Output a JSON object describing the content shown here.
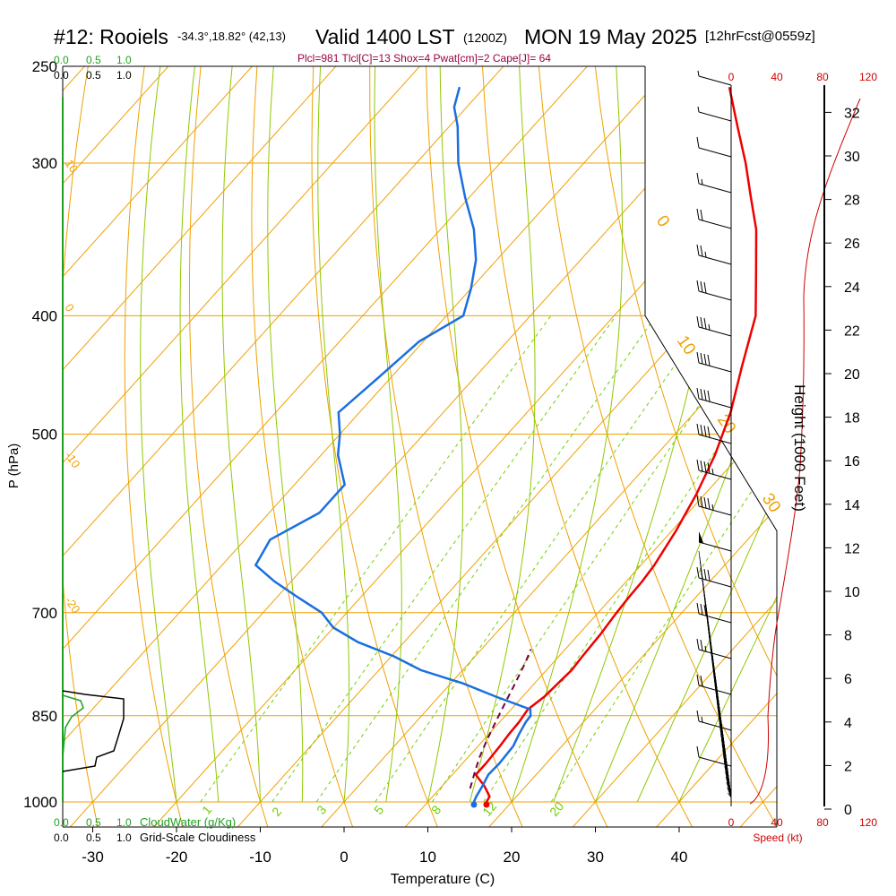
{
  "header": {
    "station": "#12: Rooiels",
    "coords": "-34.3°,18.82° (42,13)",
    "valid": "Valid 1400 LST",
    "utc": "(1200Z)",
    "date": "MON 19 May 2025",
    "fcst": "[12hrFcst@0559z]",
    "indices": "Plcl=981 Tlcl[C]=13 Shox=4 Pwat[cm]=2 Cape[J]= 64"
  },
  "colors": {
    "temperature": "#ee0000",
    "dewpoint": "#1a6fe0",
    "parcel": "#7a0040",
    "isotherm": "#f0a000",
    "moist_adiabat": "#90c800",
    "mixing_ratio": "#70d000",
    "cloudwater": "#20a020",
    "speed": "#cc0000",
    "indices_text": "#990044"
  },
  "chart_data": {
    "type": "skew-t",
    "title": "#12: Rooiels Valid 1400 LST (1200Z) MON 19 May 2025",
    "xlabel": "Temperature (C)",
    "ylabel": "P (hPa)",
    "y2label": "Height (1000 Feet)",
    "x_ticks": [
      -30,
      -20,
      -10,
      0,
      10,
      20,
      30,
      40
    ],
    "pressure_ticks": [
      250,
      300,
      400,
      500,
      700,
      850,
      1000
    ],
    "height_ticks": [
      0,
      2,
      4,
      6,
      8,
      10,
      12,
      14,
      16,
      18,
      20,
      22,
      24,
      26,
      28,
      30,
      32
    ],
    "isotherm_labels": [
      {
        "text": "10",
        "t": 10
      },
      {
        "text": "0",
        "t": 0
      },
      {
        "text": "-10",
        "t": -10
      },
      {
        "text": "-20",
        "t": -20
      },
      {
        "text": "0",
        "t": 0
      },
      {
        "text": "10",
        "t": 10
      },
      {
        "text": "20",
        "t": 20
      },
      {
        "text": "30",
        "t": 30
      }
    ],
    "mixing_ratio_labels": [
      "1",
      "2",
      "3",
      "5",
      "8",
      "12",
      "20"
    ],
    "series": [
      {
        "name": "Temperature",
        "points": [
          [
            1000,
            17.0
          ],
          [
            990,
            16.8
          ],
          [
            970,
            15.0
          ],
          [
            950,
            12.8
          ],
          [
            930,
            12.8
          ],
          [
            900,
            12.6
          ],
          [
            880,
            12.4
          ],
          [
            860,
            12.3
          ],
          [
            840,
            12.0
          ],
          [
            820,
            12.6
          ],
          [
            800,
            12.8
          ],
          [
            780,
            13.0
          ],
          [
            760,
            12.8
          ],
          [
            730,
            12.6
          ],
          [
            700,
            12.2
          ],
          [
            680,
            12.0
          ],
          [
            660,
            11.9
          ],
          [
            640,
            11.6
          ],
          [
            600,
            10.5
          ],
          [
            560,
            9.0
          ],
          [
            520,
            7.0
          ],
          [
            480,
            4.3
          ],
          [
            440,
            0.7
          ],
          [
            400,
            -3.1
          ],
          [
            370,
            -7.5
          ],
          [
            340,
            -12.3
          ],
          [
            320,
            -16.4
          ],
          [
            300,
            -20.7
          ],
          [
            280,
            -25.6
          ],
          [
            260,
            -30.8
          ]
        ]
      },
      {
        "name": "Dewpoint",
        "points": [
          [
            1000,
            15.5
          ],
          [
            990,
            15.2
          ],
          [
            970,
            14.8
          ],
          [
            950,
            14.3
          ],
          [
            930,
            14.4
          ],
          [
            900,
            14.2
          ],
          [
            880,
            13.6
          ],
          [
            860,
            13.1
          ],
          [
            850,
            13.0
          ],
          [
            840,
            12.3
          ],
          [
            820,
            6.8
          ],
          [
            800,
            1.5
          ],
          [
            780,
            -5.0
          ],
          [
            760,
            -9.7
          ],
          [
            740,
            -15.5
          ],
          [
            720,
            -20.0
          ],
          [
            700,
            -23.0
          ],
          [
            680,
            -27.5
          ],
          [
            660,
            -32.0
          ],
          [
            640,
            -36.0
          ],
          [
            610,
            -37.0
          ],
          [
            580,
            -34.0
          ],
          [
            550,
            -34.0
          ],
          [
            520,
            -38.0
          ],
          [
            500,
            -40.0
          ],
          [
            480,
            -42.5
          ],
          [
            450,
            -41.5
          ],
          [
            420,
            -40.5
          ],
          [
            400,
            -38.0
          ],
          [
            380,
            -40.0
          ],
          [
            360,
            -42.5
          ],
          [
            340,
            -46.0
          ],
          [
            320,
            -50.5
          ],
          [
            300,
            -55.0
          ],
          [
            280,
            -59.0
          ],
          [
            270,
            -61.5
          ],
          [
            260,
            -63.0
          ]
        ]
      },
      {
        "name": "Parcel",
        "points": [
          [
            975,
            13.6
          ],
          [
            950,
            12.6
          ],
          [
            920,
            11.4
          ],
          [
            890,
            10.4
          ],
          [
            860,
            9.5
          ],
          [
            830,
            8.6
          ],
          [
            800,
            7.7
          ],
          [
            770,
            6.7
          ],
          [
            750,
            5.9
          ]
        ]
      }
    ],
    "wind_barbs_kt": [
      5,
      5,
      10,
      15,
      20,
      25,
      30,
      35,
      40,
      40,
      40,
      45,
      45,
      50,
      40,
      30,
      25,
      20,
      15,
      10,
      10
    ],
    "speed_axis": [
      0,
      40,
      80,
      120
    ],
    "speed_label": "Speed (kt)",
    "cloud_axis": [
      0.0,
      0.5,
      1.0
    ],
    "cloudwater_label": "CloudWater (g/Kg)",
    "cloudiness_label": "Grid-Scale Cloudiness"
  }
}
